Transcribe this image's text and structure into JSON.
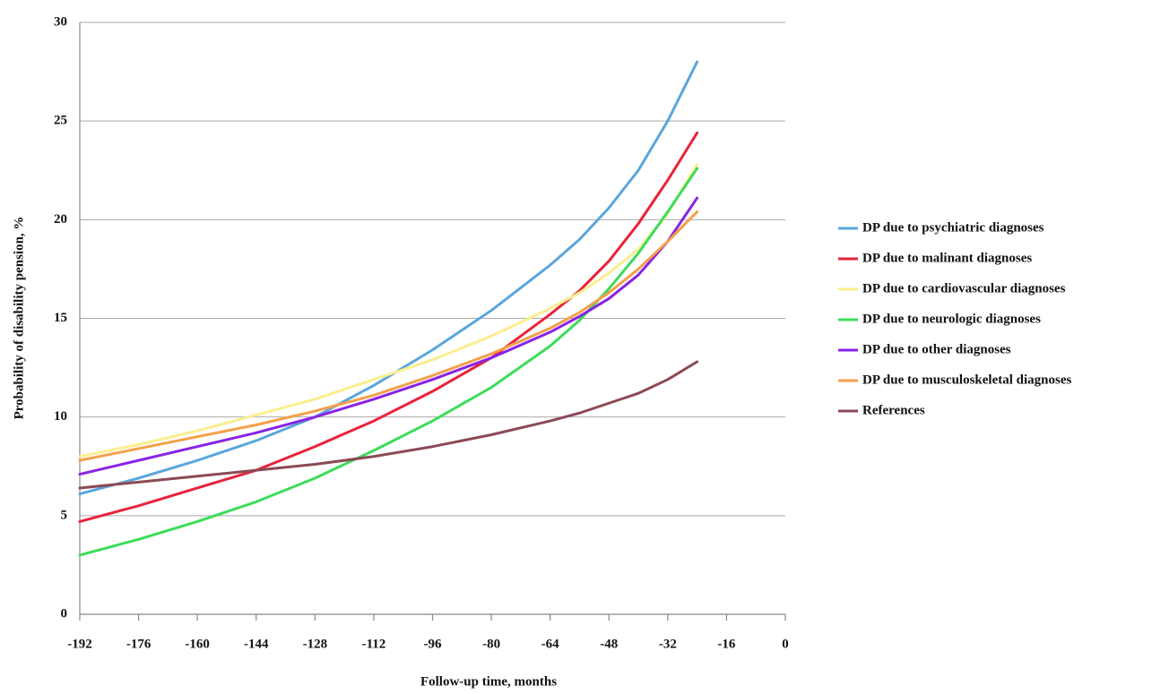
{
  "chart_data": {
    "type": "line",
    "x_label": "Follow-up time, months",
    "y_label": "Probability of disability pension, %",
    "x": [
      -192,
      -176,
      -160,
      -144,
      -128,
      -112,
      -96,
      -80,
      -64,
      -56,
      -48,
      -40,
      -32,
      -24
    ],
    "series": [
      {
        "name": "DP due to psychiatric diagnoses",
        "color": "#5aa6dc",
        "values": [
          6.1,
          6.9,
          7.8,
          8.8,
          10.0,
          11.6,
          13.4,
          15.4,
          17.7,
          19.0,
          20.6,
          22.5,
          25.0,
          28.0
        ]
      },
      {
        "name": "DP due to malinant diagnoses",
        "color": "#e8233a",
        "values": [
          4.7,
          5.5,
          6.4,
          7.3,
          8.5,
          9.8,
          11.3,
          13.0,
          15.2,
          16.4,
          17.9,
          19.8,
          22.0,
          24.4
        ]
      },
      {
        "name": "DP due to cardiovascular diagnoses",
        "color": "#fbee8e",
        "values": [
          8.0,
          8.6,
          9.3,
          10.1,
          10.9,
          11.9,
          12.9,
          14.1,
          15.5,
          16.3,
          17.3,
          18.5,
          20.3,
          22.8
        ]
      },
      {
        "name": "DP due to neurologic diagnoses",
        "color": "#3ddc5a",
        "values": [
          3.0,
          3.8,
          4.7,
          5.7,
          6.9,
          8.3,
          9.8,
          11.5,
          13.6,
          14.9,
          16.5,
          18.3,
          20.4,
          22.6
        ]
      },
      {
        "name": "DP due to other diagnoses",
        "color": "#8a22e6",
        "values": [
          7.1,
          7.8,
          8.5,
          9.2,
          10.0,
          10.9,
          11.9,
          13.0,
          14.3,
          15.1,
          16.0,
          17.2,
          18.9,
          21.1
        ]
      },
      {
        "name": "DP due to musculoskeletal diagnoses",
        "color": "#f4a04a",
        "values": [
          7.8,
          8.4,
          9.0,
          9.6,
          10.3,
          11.1,
          12.1,
          13.2,
          14.5,
          15.3,
          16.3,
          17.5,
          18.9,
          20.4
        ]
      },
      {
        "name": "References",
        "color": "#8b4a55",
        "values": [
          6.4,
          6.7,
          7.0,
          7.3,
          7.6,
          8.0,
          8.5,
          9.1,
          9.8,
          10.2,
          10.7,
          11.2,
          11.9,
          12.8
        ]
      }
    ],
    "xlim": [
      -192,
      0
    ],
    "xticks": [
      -192,
      -176,
      -160,
      -144,
      -128,
      -112,
      -96,
      -80,
      -64,
      -48,
      -32,
      -16,
      0
    ],
    "ylim": [
      0,
      30
    ],
    "yticks": [
      0,
      5,
      10,
      15,
      20,
      25,
      30
    ],
    "grid": true,
    "legend": "right"
  }
}
